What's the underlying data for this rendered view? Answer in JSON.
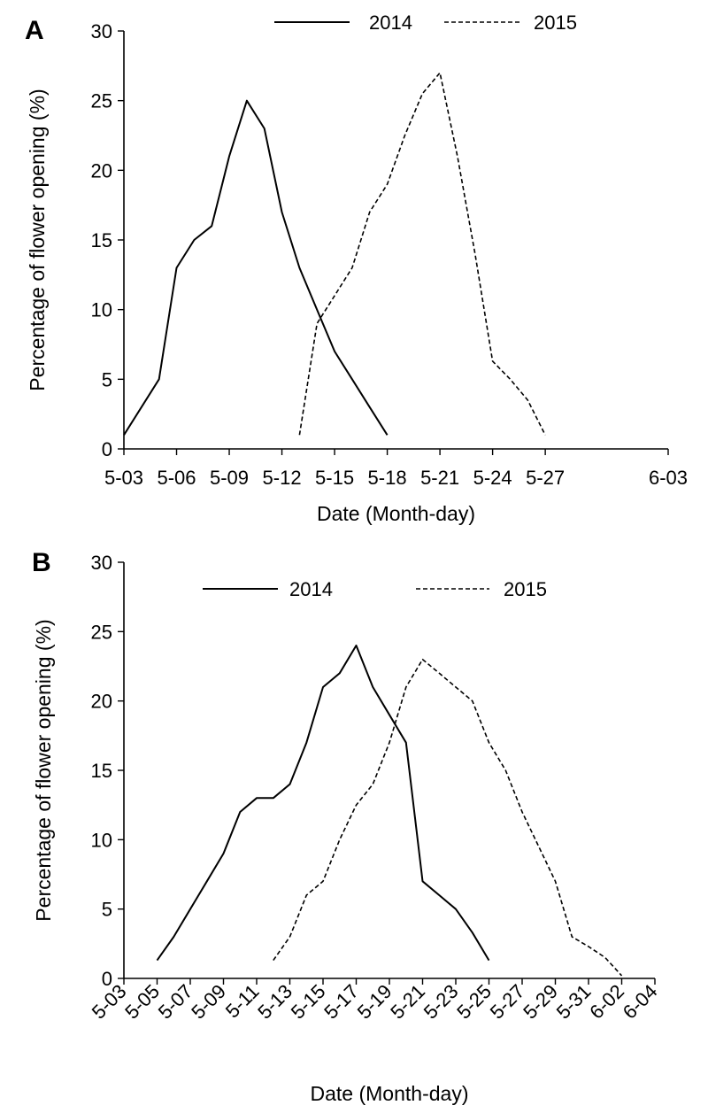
{
  "chart_data": [
    {
      "panel": "A",
      "type": "line",
      "xlabel": "Date (Month-day)",
      "ylabel": "Percentage of flower opening (%)",
      "xlim": [
        "5-03",
        "6-03"
      ],
      "ylim": [
        0,
        30
      ],
      "x_ticks": [
        "5-03",
        "5-06",
        "5-09",
        "5-12",
        "5-15",
        "5-18",
        "5-21",
        "5-24",
        "5-27",
        "6-03"
      ],
      "y_ticks": [
        0,
        5,
        10,
        15,
        20,
        25,
        30
      ],
      "grid": false,
      "legend": "top",
      "series": [
        {
          "name": "2014",
          "style": "solid",
          "points": [
            [
              "5-03",
              1
            ],
            [
              "5-05",
              5
            ],
            [
              "5-06",
              13
            ],
            [
              "5-07",
              15
            ],
            [
              "5-08",
              16
            ],
            [
              "5-09",
              21
            ],
            [
              "5-10",
              25
            ],
            [
              "5-11",
              23
            ],
            [
              "5-12",
              17
            ],
            [
              "5-13",
              13
            ],
            [
              "5-14",
              10
            ],
            [
              "5-15",
              7
            ],
            [
              "5-16",
              5
            ],
            [
              "5-17",
              3
            ],
            [
              "5-18",
              1
            ]
          ]
        },
        {
          "name": "2015",
          "style": "dashed",
          "points": [
            [
              "5-13",
              1
            ],
            [
              "5-14",
              9
            ],
            [
              "5-15",
              11
            ],
            [
              "5-16",
              13
            ],
            [
              "5-17",
              17
            ],
            [
              "5-18",
              19
            ],
            [
              "5-19",
              22.5
            ],
            [
              "5-20",
              25.5
            ],
            [
              "5-21",
              27
            ],
            [
              "5-22",
              21
            ],
            [
              "5-23",
              14
            ],
            [
              "5-24",
              6.3
            ],
            [
              "5-25",
              5
            ],
            [
              "5-26",
              3.5
            ],
            [
              "5-27",
              1
            ]
          ]
        }
      ]
    },
    {
      "panel": "B",
      "type": "line",
      "xlabel": "Date (Month-day)",
      "ylabel": "Percentage of flower opening (%)",
      "xlim": [
        "5-03",
        "6-04"
      ],
      "ylim": [
        0,
        30
      ],
      "x_ticks": [
        "5-03",
        "5-05",
        "5-07",
        "5-09",
        "5-11",
        "5-13",
        "5-15",
        "5-17",
        "5-19",
        "5-21",
        "5-23",
        "5-25",
        "5-27",
        "5-29",
        "5-31",
        "6-02",
        "6-04"
      ],
      "y_ticks": [
        0,
        5,
        10,
        15,
        20,
        25,
        30
      ],
      "grid": false,
      "legend": "top",
      "series": [
        {
          "name": "2014",
          "style": "solid",
          "points": [
            [
              "5-05",
              1.3
            ],
            [
              "5-06",
              3
            ],
            [
              "5-07",
              5
            ],
            [
              "5-08",
              7
            ],
            [
              "5-09",
              9
            ],
            [
              "5-10",
              12
            ],
            [
              "5-11",
              13
            ],
            [
              "5-12",
              13
            ],
            [
              "5-13",
              14
            ],
            [
              "5-14",
              17
            ],
            [
              "5-15",
              21
            ],
            [
              "5-16",
              22
            ],
            [
              "5-17",
              24
            ],
            [
              "5-18",
              21
            ],
            [
              "5-19",
              19
            ],
            [
              "5-20",
              17
            ],
            [
              "5-21",
              7
            ],
            [
              "5-22",
              6
            ],
            [
              "5-23",
              5
            ],
            [
              "5-24",
              3.3
            ],
            [
              "5-25",
              1.3
            ]
          ]
        },
        {
          "name": "2015",
          "style": "dashed",
          "points": [
            [
              "5-12",
              1.3
            ],
            [
              "5-13",
              3
            ],
            [
              "5-14",
              6
            ],
            [
              "5-15",
              7
            ],
            [
              "5-16",
              10
            ],
            [
              "5-17",
              12.5
            ],
            [
              "5-18",
              14
            ],
            [
              "5-19",
              17
            ],
            [
              "5-20",
              21
            ],
            [
              "5-21",
              23
            ],
            [
              "5-22",
              22
            ],
            [
              "5-23",
              21
            ],
            [
              "5-24",
              20
            ],
            [
              "5-25",
              17
            ],
            [
              "5-26",
              15
            ],
            [
              "5-27",
              12
            ],
            [
              "5-28",
              9.5
            ],
            [
              "5-29",
              7
            ],
            [
              "5-30",
              3
            ],
            [
              "5-31",
              2.3
            ],
            [
              "6-01",
              1.5
            ],
            [
              "6-02",
              0.2
            ]
          ]
        }
      ]
    }
  ]
}
